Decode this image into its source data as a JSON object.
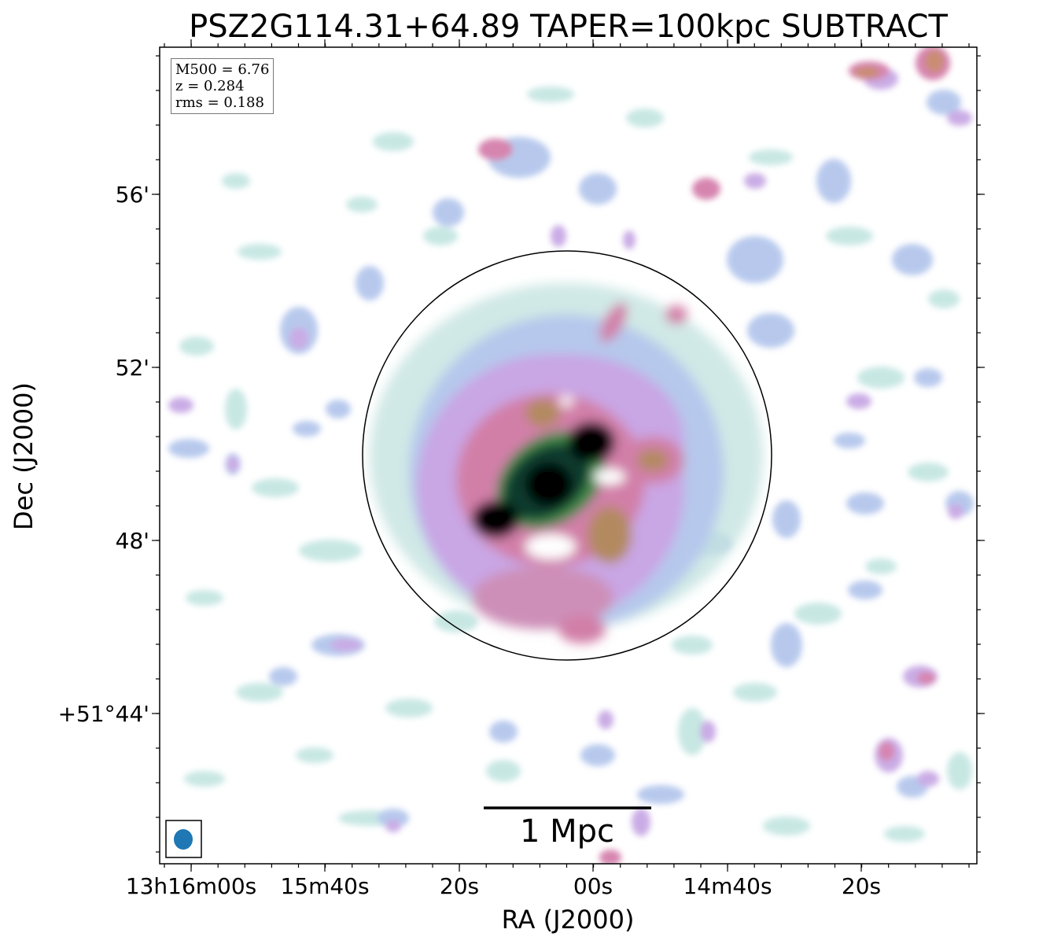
{
  "title": "PSZ2G114.31+64.89 TAPER=100kpc SUBTRACT",
  "info": {
    "mass": "M500 = 6.76",
    "redshift": "z = 0.284",
    "rms": "rms = 0.188"
  },
  "scalebar": {
    "label": "1 Mpc"
  },
  "axes": {
    "xlabel": "RA (J2000)",
    "ylabel": "Dec (J2000)",
    "xticks": [
      "13h16m00s",
      "15m40s",
      "20s",
      "00s",
      "14m40s",
      "20s"
    ],
    "yticks": [
      "56'",
      "52'",
      "48'",
      "+51°44'"
    ]
  },
  "colors": {
    "frame": "#000000",
    "beam": "#1f77b4",
    "colormap": [
      "#bfe3e0",
      "#b6c8ec",
      "#c9a6e4",
      "#d27fa8",
      "#c8876c",
      "#8e9444",
      "#2f8a58",
      "#0f3b2e",
      "#000000"
    ]
  }
}
